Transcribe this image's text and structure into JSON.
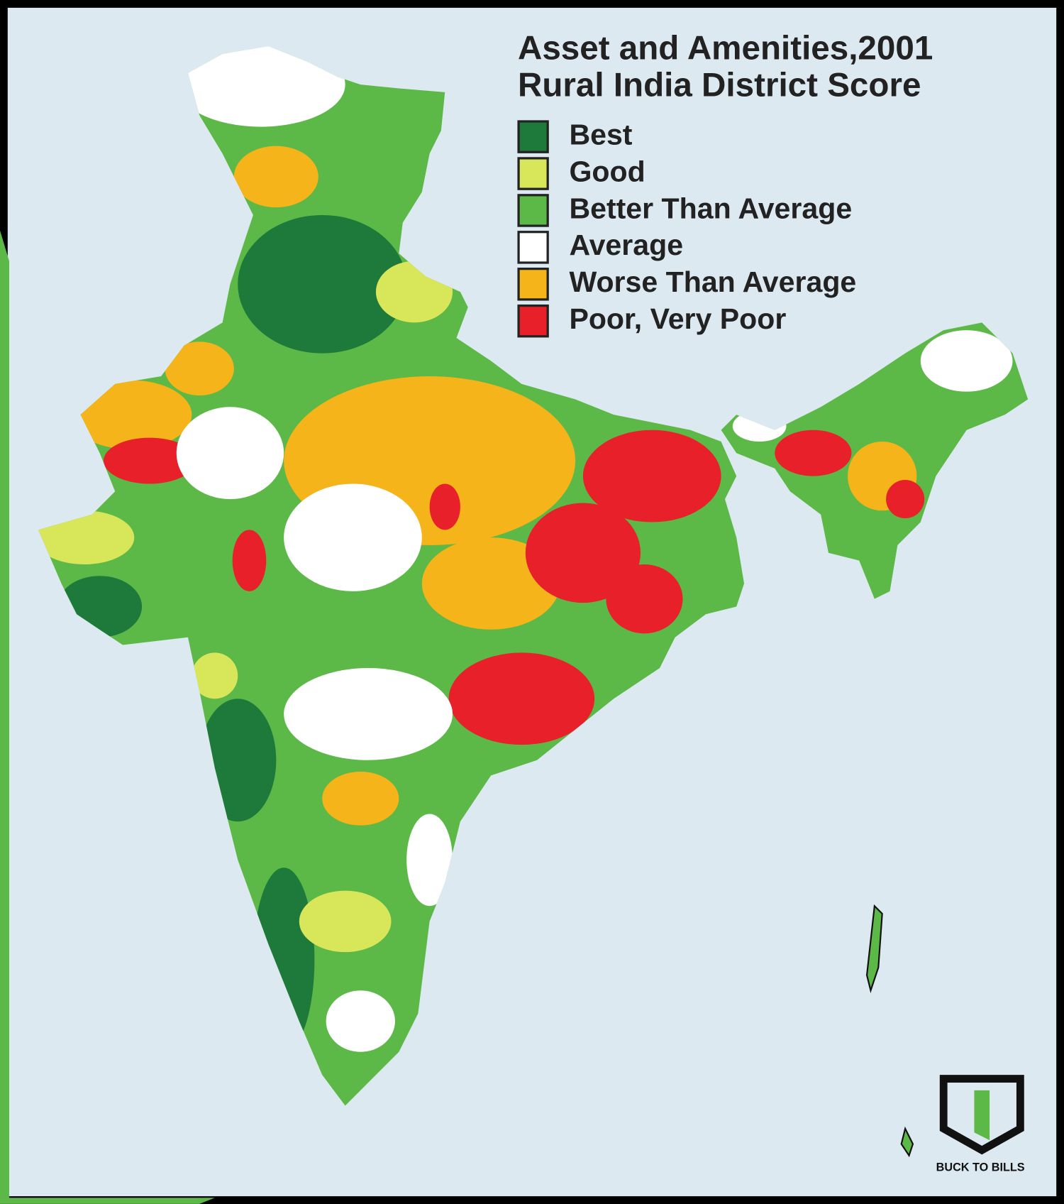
{
  "title": {
    "line1": "Asset and Amenities,2001",
    "line2": "Rural India District Score"
  },
  "legend": [
    {
      "label": "Best",
      "color": "#1e7a3a"
    },
    {
      "label": "Good",
      "color": "#d8e65a"
    },
    {
      "label": "Better Than Average",
      "color": "#5cb847"
    },
    {
      "label": "Average",
      "color": "#ffffff"
    },
    {
      "label": "Worse Than Average",
      "color": "#f4b41a"
    },
    {
      "label": "Poor, Very Poor",
      "color": "#e8202a"
    }
  ],
  "logo": {
    "text": "BUCK TO BILLS"
  }
}
